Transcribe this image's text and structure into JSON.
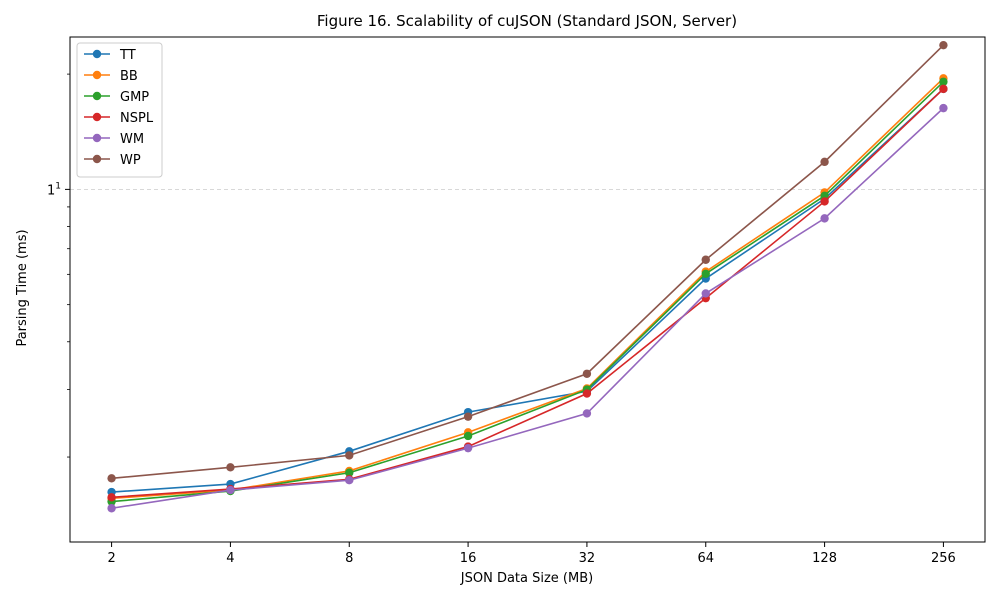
{
  "chart_data": {
    "type": "line",
    "title": "Figure 16. Scalability of cuJSON (Standard JSON, Server)",
    "xlabel": "JSON Data Size (MB)",
    "ylabel": "Parsing Time (ms)",
    "x_scale": "log2",
    "y_scale": "log",
    "categories": [
      "2",
      "4",
      "8",
      "16",
      "32",
      "64",
      "128",
      "256"
    ],
    "x": [
      2,
      4,
      8,
      16,
      32,
      64,
      128,
      256
    ],
    "ylim": [
      1.2,
      25
    ],
    "y_ticks": [
      {
        "value": 10,
        "label": "10",
        "exp": "1"
      }
    ],
    "grid": "horizontal dashed at 10",
    "legend": "top-left",
    "series": [
      {
        "name": "TT",
        "color": "#1f77b4",
        "values": [
          1.62,
          1.7,
          2.07,
          2.62,
          2.97,
          5.85,
          9.45,
          18.3
        ]
      },
      {
        "name": "BB",
        "color": "#ff7f0e",
        "values": [
          1.56,
          1.64,
          1.84,
          2.32,
          3.02,
          6.1,
          9.82,
          19.5
        ]
      },
      {
        "name": "GMP",
        "color": "#2ca02c",
        "values": [
          1.53,
          1.63,
          1.82,
          2.27,
          3.0,
          6.02,
          9.62,
          19.1
        ]
      },
      {
        "name": "NSPL",
        "color": "#d62728",
        "values": [
          1.57,
          1.65,
          1.75,
          2.13,
          2.93,
          5.2,
          9.3,
          18.3
        ]
      },
      {
        "name": "WM",
        "color": "#9467bd",
        "values": [
          1.47,
          1.64,
          1.74,
          2.11,
          2.6,
          5.35,
          8.4,
          16.3
        ]
      },
      {
        "name": "WP",
        "color": "#8c564b",
        "values": [
          1.76,
          1.88,
          2.02,
          2.55,
          3.3,
          6.55,
          11.8,
          23.8
        ]
      }
    ]
  }
}
